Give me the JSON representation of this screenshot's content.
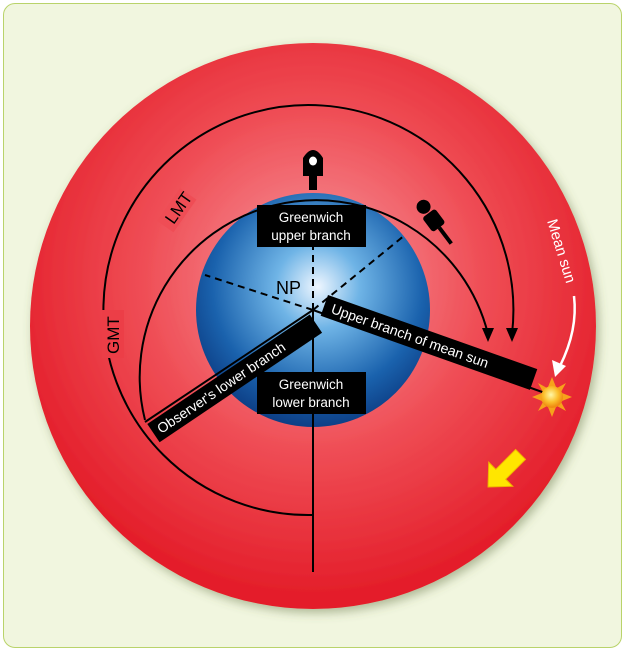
{
  "labels": {
    "np": "NP",
    "greenwich_upper": [
      "Greenwich",
      "upper branch"
    ],
    "greenwich_lower": [
      "Greenwich",
      "lower branch"
    ],
    "observers_lower": "Observer's lower branch",
    "upper_mean_sun": "Upper branch of mean sun",
    "lmt": "LMT",
    "gmt": "GMT",
    "mean_sun": "Mean sun"
  },
  "colors": {
    "outer_red": "#e8262f",
    "outer_red_light": "#f79aa0",
    "globe_blue": "#1a5aa6",
    "globe_light": "#eef6ff",
    "label_bg": "#000000",
    "label_text": "#ffffff",
    "sun": "#f7a21b",
    "arrow_yellow": "#ffe600",
    "border": "#b9d36a",
    "background": "#f1f6df"
  },
  "icons": {
    "greenwich": "greenwich-marker-icon",
    "observer": "observer-person-icon",
    "sun": "sun-icon",
    "rotation": "rotation-arrow-icon"
  }
}
